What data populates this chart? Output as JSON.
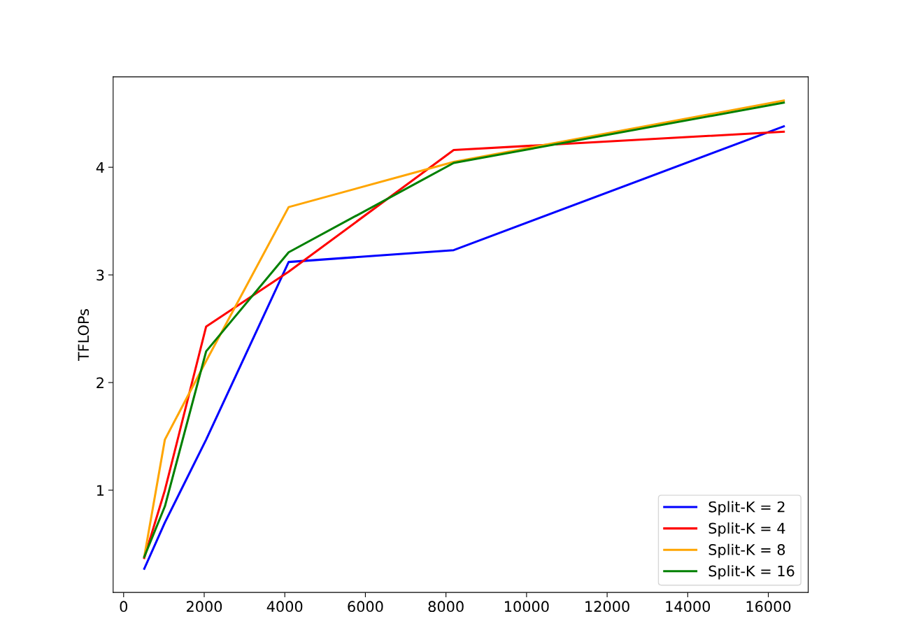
{
  "chart_data": {
    "type": "line",
    "ylabel": "TFLOPs",
    "x": [
      512,
      1024,
      2048,
      4096,
      8192,
      16384
    ],
    "xlim": [
      -260,
      16990
    ],
    "xticks": [
      0,
      2000,
      4000,
      6000,
      8000,
      10000,
      12000,
      14000,
      16000
    ],
    "ylim": [
      0.05,
      4.84
    ],
    "yticks": [
      1,
      2,
      3,
      4
    ],
    "grid": false,
    "legend": "lower right",
    "series": [
      {
        "name": "Split-K = 2",
        "color": "#0000ff",
        "values": [
          0.27,
          0.7,
          1.47,
          3.12,
          3.23,
          4.38
        ]
      },
      {
        "name": "Split-K = 4",
        "color": "#ff0000",
        "values": [
          0.37,
          1.0,
          2.52,
          3.03,
          4.16,
          4.33
        ]
      },
      {
        "name": "Split-K = 8",
        "color": "#ffa500",
        "values": [
          0.38,
          1.47,
          2.2,
          3.63,
          4.05,
          4.62
        ]
      },
      {
        "name": "Split-K = 16",
        "color": "#008000",
        "values": [
          0.38,
          0.85,
          2.29,
          3.21,
          4.04,
          4.6
        ]
      }
    ]
  }
}
